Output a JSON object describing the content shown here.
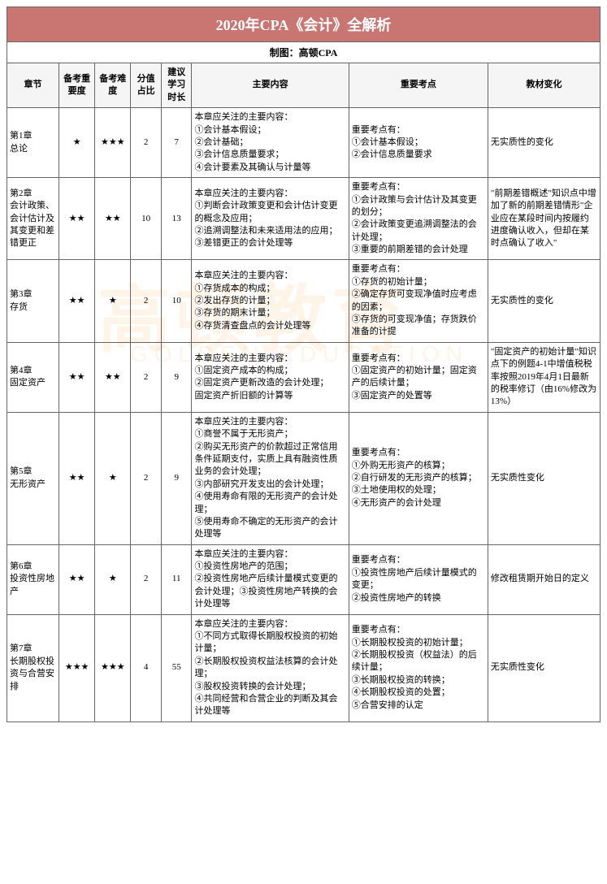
{
  "title": "2020年CPA《会计》全解析",
  "title_bg": "#c97572",
  "title_color": "#ffffff",
  "subtitle": "制图：高顿CPA",
  "watermark_main": "高顿教育",
  "watermark_sub": "GOLDEN EDUCATION",
  "columns": [
    "章节",
    "备考重要度",
    "备考难度",
    "分值占比",
    "建议学习时长",
    "主要内容",
    "重要考点",
    "教材变化"
  ],
  "rows": [
    {
      "chapter": "第1章\n总论",
      "importance": "★",
      "difficulty": "★★★",
      "score": "2",
      "hours": "7",
      "main": "本章应关注的主要内容：\n①会计基本假设；\n②会计基础；\n③会计信息质量要求；\n④会计要素及其确认与计量等",
      "key": "重要考点有：\n①会计基本假设；\n②会计信息质量要求",
      "change": "无实质性的变化"
    },
    {
      "chapter": "第2章\n会计政策、会计估计及其变更和差错更正",
      "importance": "★★",
      "difficulty": "★★",
      "score": "10",
      "hours": "13",
      "main": "本章应关注的主要内容：\n①判断会计政策变更和会计估计变更的概念及应用；\n②追溯调整法和未来适用法的应用；\n③差错更正的会计处理等",
      "key": "重要考点有：\n①会计政策与会计估计及其变更的划分；\n②会计政策变更追溯调整法的会计处理；\n③重要的前期差错的会计处理",
      "change": "\"前期差错概述\"知识点中增加了新的前期差错情形\"企业应在某段时间内按履约进度确认收入，但却在某时点确认了收入\""
    },
    {
      "chapter": "第3章\n存货",
      "importance": "★★",
      "difficulty": "★",
      "score": "2",
      "hours": "10",
      "main": "本章应关注的主要内容：\n①存货成本的构成；\n②发出存货的计量；\n③存货的期末计量；\n④存货清查盘点的会计处理等",
      "key": "重要考点有：\n①存货的初始计量；\n②确定存货可变现净值时应考虑的因素；\n③存货的可变现净值；存货跌价准备的计提",
      "change": "无实质性的变化"
    },
    {
      "chapter": "第4章\n固定资产",
      "importance": "★★",
      "difficulty": "★★",
      "score": "2",
      "hours": "9",
      "main": "本章应关注的主要内容：\n①固定资产成本的构成；\n②固定资产更新改造的会计处理；\n固定资产折旧额的计算等",
      "key": "重要考点有：\n①固定资产的初始计量；固定资产的后续计量；\n③固定资产的处置等",
      "change": "\"固定资产的初始计量\"知识点下的例题4-1中增值税税率按照2019年4月1日最新的税率修订（由16%修改为13%）"
    },
    {
      "chapter": "第5章\n无形资产",
      "importance": "★★",
      "difficulty": "★",
      "score": "2",
      "hours": "9",
      "main": "本章应关注的主要内容：\n①商誉不属于无形资产；\n②购买无形资产的价款超过正常信用条件延期支付，实质上具有融资性质业务的会计处理；\n③内部研究开发支出的会计处理；\n④使用寿命有限的无形资产的会计处理；\n⑤使用寿命不确定的无形资产的会计处理等",
      "key": "重要考点有：\n①外购无形资产的核算；\n②自行研发的无形资产的核算；\n③土地使用权的处理；\n④无形资产的会计处理",
      "change": "无实质性变化"
    },
    {
      "chapter": "第6章\n投资性房地产",
      "importance": "★★",
      "difficulty": "★",
      "score": "2",
      "hours": "11",
      "main": "本章应关注的主要内容：\n①投资性房地产的范围；\n②投资性房地产后续计量模式变更的会计处理；③投资性房地产转换的会计处理等",
      "key": "重要考点有：\n①投资性房地产后续计量模式的变更；\n②投资性房地产的转换",
      "change": "修改租赁期开始日的定义"
    },
    {
      "chapter": "第7章\n长期股权投资与合营安排",
      "importance": "★★★",
      "difficulty": "★★★",
      "score": "4",
      "hours": "55",
      "main": "本章应关注的主要内容：\n①不同方式取得长期股权投资的初始计量；\n②长期股权投资权益法核算的会计处理；\n③股权投资转换的会计处理；\n④共同经营和合营企业的判断及其会计处理等",
      "key": "重要考点有：\n①长期股权投资的初始计量；\n②长期股权投资（权益法）的后续计量；\n③长期股权投资的转换；\n④长期股权投资的处置；\n⑤合营安排的认定",
      "change": "无实质性变化"
    }
  ]
}
